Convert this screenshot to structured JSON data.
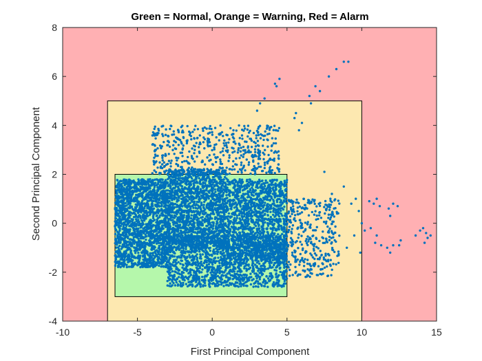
{
  "chart_data": {
    "type": "scatter",
    "title": "Green = Normal, Orange = Warning, Red = Alarm",
    "xlabel": "First Principal Component",
    "ylabel": "Second Principal Component",
    "xlim": [
      -10,
      15
    ],
    "ylim": [
      -4,
      8
    ],
    "x_ticks": [
      -10,
      -5,
      0,
      5,
      10,
      15
    ],
    "y_ticks": [
      -4,
      -2,
      0,
      2,
      4,
      6,
      8
    ],
    "grid": false,
    "colors": {
      "alarm": "#ffb0b3",
      "warning": "#fde8b0",
      "normal": "#b5f7ab",
      "points": "#0072bd"
    },
    "regions": [
      {
        "name": "Alarm",
        "color": "#ffb0b3",
        "x": [
          -10,
          15
        ],
        "y": [
          -4,
          8
        ]
      },
      {
        "name": "Warning",
        "color": "#fde8b0",
        "x": [
          -7,
          10
        ],
        "y": [
          -4,
          5
        ]
      },
      {
        "name": "Normal",
        "color": "#b5f7ab",
        "x": [
          -6.5,
          5
        ],
        "y": [
          -3,
          2
        ]
      }
    ],
    "point_clusters": [
      {
        "x": [
          -6.5,
          -3.0
        ],
        "y": [
          -1.8,
          1.8
        ],
        "n": 1800
      },
      {
        "x": [
          -3.0,
          1.0
        ],
        "y": [
          -1.0,
          2.2
        ],
        "n": 1700
      },
      {
        "x": [
          -3.0,
          5.0
        ],
        "y": [
          -2.6,
          -0.5
        ],
        "n": 1500
      },
      {
        "x": [
          1.0,
          5.0
        ],
        "y": [
          -1.5,
          1.8
        ],
        "n": 1400
      },
      {
        "x": [
          -4.0,
          4.5
        ],
        "y": [
          2.0,
          4.0
        ],
        "n": 500
      },
      {
        "x": [
          5.0,
          8.5
        ],
        "y": [
          -2.2,
          1.0
        ],
        "n": 350
      }
    ],
    "outlier_points": [
      [
        4.2,
        5.7
      ],
      [
        4.5,
        5.9
      ],
      [
        3.5,
        5.1
      ],
      [
        3.2,
        4.9
      ],
      [
        3.0,
        4.6
      ],
      [
        4.3,
        5.6
      ],
      [
        6.9,
        5.6
      ],
      [
        7.2,
        5.4
      ],
      [
        7.8,
        6.0
      ],
      [
        8.3,
        6.3
      ],
      [
        8.8,
        6.6
      ],
      [
        9.1,
        6.6
      ],
      [
        6.5,
        5.2
      ],
      [
        6.6,
        4.9
      ],
      [
        5.6,
        4.5
      ],
      [
        6.0,
        4.1
      ],
      [
        5.8,
        3.8
      ],
      [
        5.5,
        4.3
      ],
      [
        10.5,
        0.9
      ],
      [
        10.8,
        0.8
      ],
      [
        11.0,
        1.0
      ],
      [
        11.2,
        0.7
      ],
      [
        11.8,
        0.6
      ],
      [
        12.1,
        0.8
      ],
      [
        12.4,
        0.7
      ],
      [
        11.9,
        0.3
      ],
      [
        10.6,
        -0.2
      ],
      [
        10.9,
        -0.8
      ],
      [
        11.3,
        -0.9
      ],
      [
        11.0,
        -0.5
      ],
      [
        11.7,
        -1.0
      ],
      [
        11.9,
        -1.2
      ],
      [
        12.1,
        -0.9
      ],
      [
        12.6,
        -0.7
      ],
      [
        12.5,
        -0.9
      ],
      [
        13.6,
        -0.5
      ],
      [
        13.9,
        -0.3
      ],
      [
        14.1,
        -0.2
      ],
      [
        14.3,
        -0.4
      ],
      [
        14.4,
        -0.6
      ],
      [
        14.6,
        -0.5
      ],
      [
        14.2,
        -0.8
      ],
      [
        10.0,
        0.0
      ],
      [
        9.8,
        0.5
      ],
      [
        9.5,
        -0.5
      ],
      [
        9.0,
        -1.0
      ],
      [
        8.8,
        1.5
      ],
      [
        7.5,
        2.1
      ],
      [
        8.0,
        1.2
      ],
      [
        7.9,
        1.0
      ],
      [
        9.3,
        0.8
      ],
      [
        9.6,
        1.0
      ],
      [
        10.2,
        -0.3
      ],
      [
        9.9,
        -1.2
      ]
    ]
  }
}
